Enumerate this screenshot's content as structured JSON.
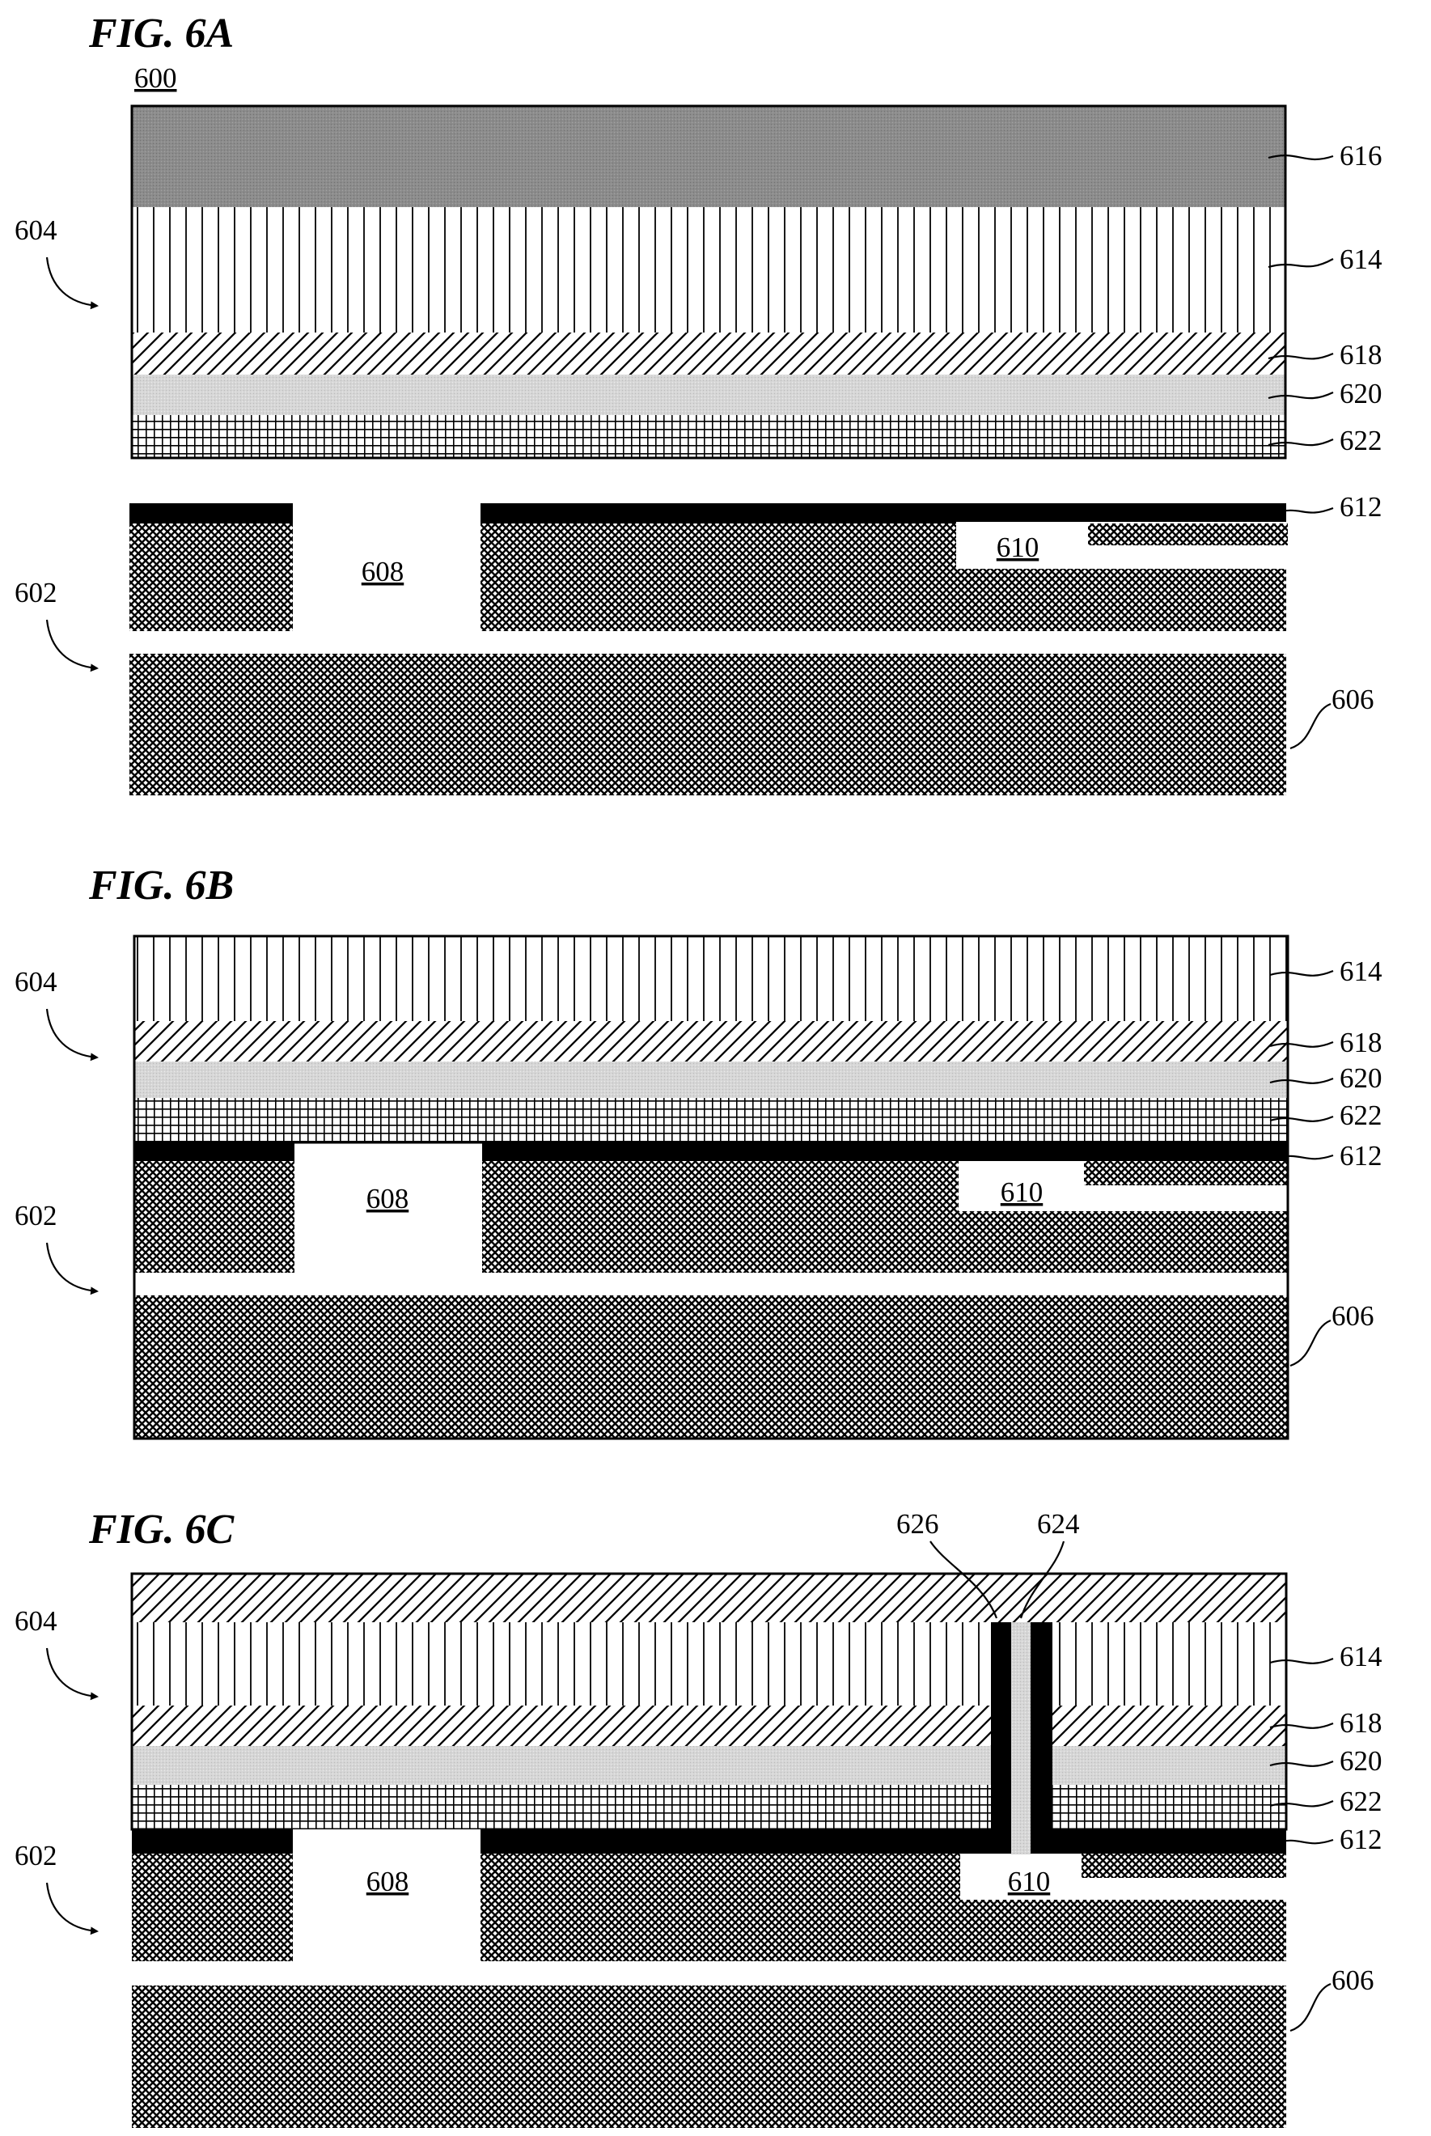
{
  "figures": [
    {
      "title": "FIG. 6A",
      "device_label": "600",
      "labels": {
        "top_structure": "604",
        "bottom_structure": "602",
        "layer_616": "616",
        "layer_614": "614",
        "layer_618": "618",
        "layer_620": "620",
        "layer_622": "622",
        "layer_612": "612",
        "region_608": "608",
        "region_610": "610",
        "substrate_606": "606"
      }
    },
    {
      "title": "FIG. 6B",
      "labels": {
        "top_structure": "604",
        "bottom_structure": "602",
        "layer_614": "614",
        "layer_618": "618",
        "layer_620": "620",
        "layer_622": "622",
        "layer_612": "612",
        "region_608": "608",
        "region_610": "610",
        "substrate_606": "606"
      }
    },
    {
      "title": "FIG. 6C",
      "labels": {
        "top_structure": "604",
        "bottom_structure": "602",
        "layer_614": "614",
        "layer_618": "618",
        "layer_620": "620",
        "layer_622": "622",
        "layer_612": "612",
        "region_608": "608",
        "region_610": "610",
        "substrate_606": "606",
        "via_liner_626": "626",
        "via_fill_624": "624"
      }
    }
  ],
  "colors": {
    "layer_616": "#8c8c8c",
    "layer_620": "#d6d6d6",
    "layer_612": "#000000",
    "substrate": "#3a3a3a",
    "background": "#ffffff"
  }
}
